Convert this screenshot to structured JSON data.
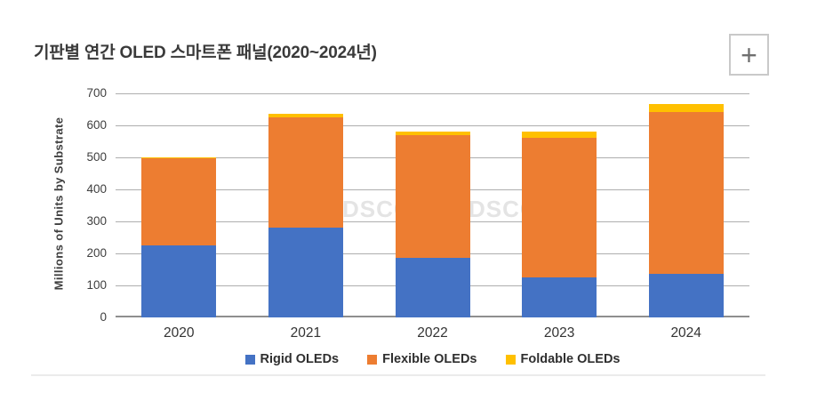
{
  "header": {
    "title": "기판별 연간 OLED 스마트폰 패널(2020~2024년)",
    "zoom_button_label": "+"
  },
  "watermark": {
    "text": "DSCC"
  },
  "chart_data": {
    "type": "bar",
    "stacked": true,
    "title": "기판별 연간 OLED 스마트폰 패널(2020~2024년)",
    "categories": [
      "2020",
      "2021",
      "2022",
      "2023",
      "2024"
    ],
    "series": [
      {
        "name": "Rigid OLEDs",
        "color": "#4472C4",
        "values": [
          225,
          280,
          185,
          125,
          135
        ]
      },
      {
        "name": "Flexible OLEDs",
        "color": "#ED7D31",
        "values": [
          272,
          345,
          385,
          435,
          507
        ]
      },
      {
        "name": "Foldable OLEDs",
        "color": "#FFC000",
        "values": [
          3,
          10,
          10,
          20,
          25
        ]
      }
    ],
    "totals": [
      500,
      635,
      580,
      580,
      667
    ],
    "xlabel": "",
    "ylabel": "Millions of Units by Substrate",
    "ylim": [
      0,
      700
    ],
    "ytick_step": 100,
    "grid": true,
    "legend_position": "bottom"
  }
}
